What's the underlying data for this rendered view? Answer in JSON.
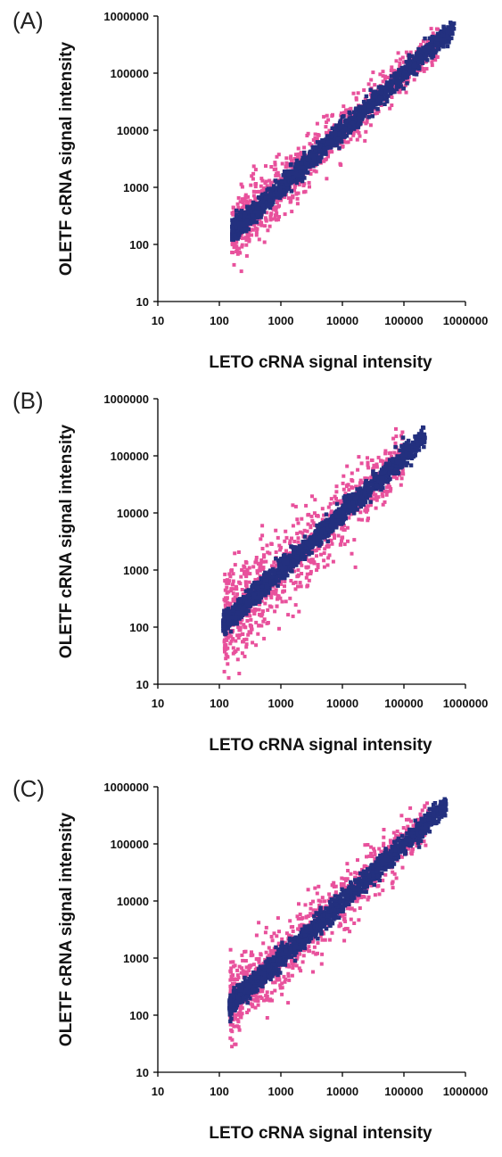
{
  "colors": {
    "within_range": "#23307f",
    "outside_range": "#e8519c",
    "axis": "#000000"
  },
  "chart_data": [
    {
      "panel": "(A)",
      "type": "scatter",
      "scale": "log",
      "xlabel": "LETO cRNA signal intensity",
      "ylabel": "OLETF cRNA signal intensity",
      "xlim": [
        10,
        1000000
      ],
      "ylim": [
        10,
        1000000
      ],
      "x_ticks": [
        "10",
        "100",
        "1000",
        "10000",
        "100000",
        "1000000"
      ],
      "y_ticks": [
        "10",
        "100",
        "1000",
        "10000",
        "100000",
        "1000000"
      ],
      "legend": "none",
      "series": [
        {
          "color": "outside_range",
          "x_range": [
            160,
            360000
          ],
          "spread": 0.22
        },
        {
          "color": "within_range",
          "x_range": [
            160,
            650000
          ],
          "spread": 0.09
        }
      ]
    },
    {
      "panel": "(B)",
      "type": "scatter",
      "scale": "log",
      "xlabel": "LETO cRNA signal intensity",
      "ylabel": "OLETF cRNA signal intensity",
      "xlim": [
        10,
        1000000
      ],
      "ylim": [
        10,
        1000000
      ],
      "x_ticks": [
        "10",
        "100",
        "1000",
        "10000",
        "100000",
        "1000000"
      ],
      "y_ticks": [
        "10",
        "100",
        "1000",
        "10000",
        "100000",
        "1000000"
      ],
      "legend": "none",
      "series": [
        {
          "color": "outside_range",
          "x_range": [
            120,
            100000
          ],
          "spread": 0.34
        },
        {
          "color": "within_range",
          "x_range": [
            115,
            220000
          ],
          "spread": 0.09
        }
      ]
    },
    {
      "panel": "(C)",
      "type": "scatter",
      "scale": "log",
      "xlabel": "LETO cRNA signal intensity",
      "ylabel": "OLETF cRNA signal intensity",
      "xlim": [
        10,
        1000000
      ],
      "ylim": [
        10,
        1000000
      ],
      "x_ticks": [
        "10",
        "100",
        "1000",
        "10000",
        "100000",
        "1000000"
      ],
      "y_ticks": [
        "10",
        "100",
        "1000",
        "10000",
        "100000",
        "1000000"
      ],
      "legend": "none",
      "series": [
        {
          "color": "outside_range",
          "x_range": [
            150,
            250000
          ],
          "spread": 0.26
        },
        {
          "color": "within_range",
          "x_range": [
            145,
            480000
          ],
          "spread": 0.09
        }
      ]
    }
  ]
}
